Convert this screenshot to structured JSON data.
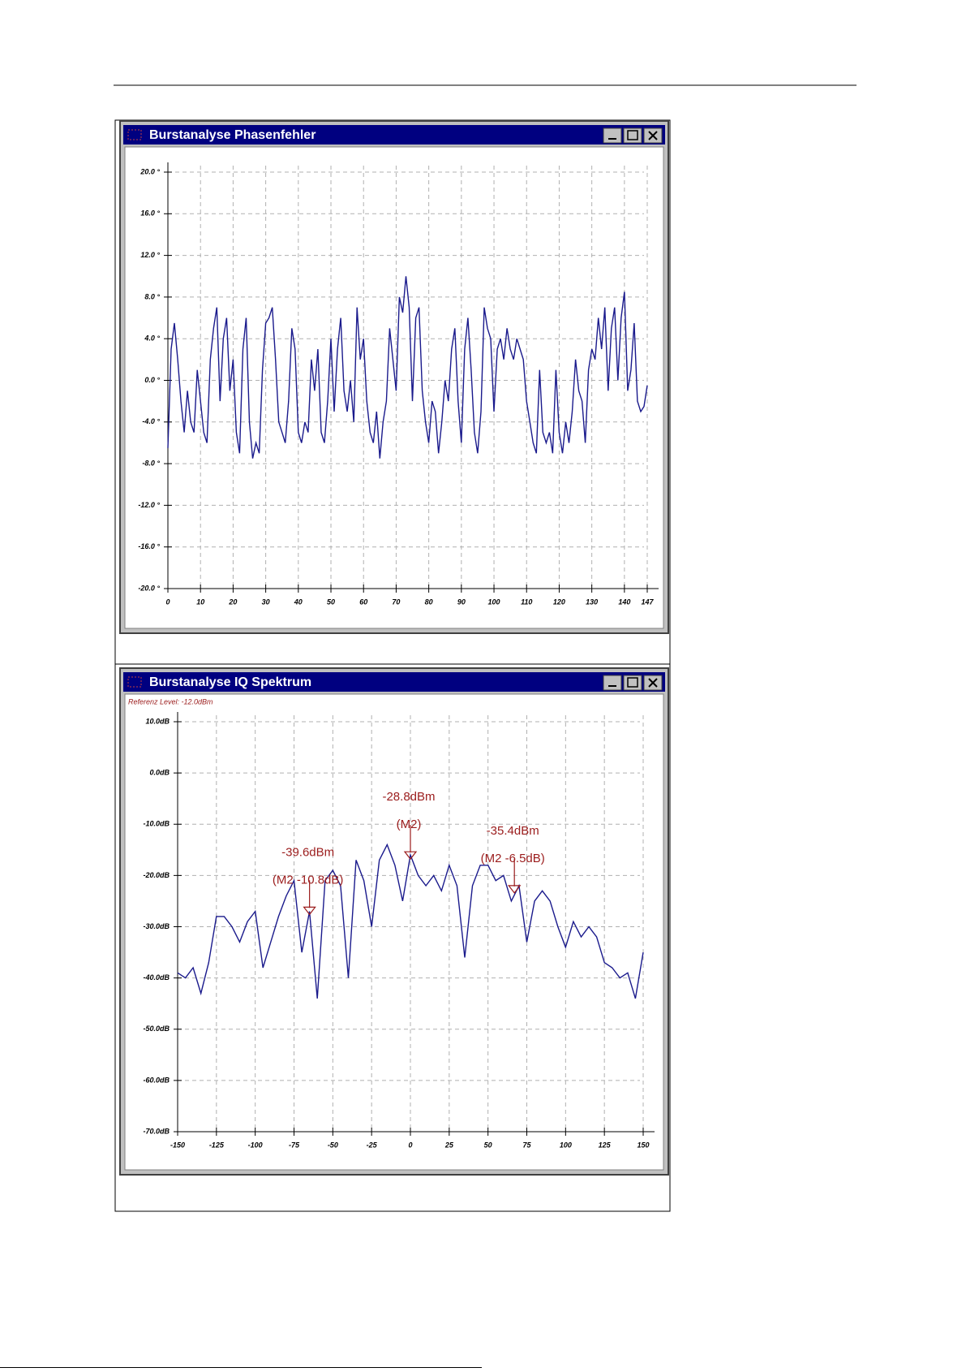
{
  "charts": [
    {
      "type": "line",
      "title": "Burstanalyse Phasenfehler",
      "x": [
        0,
        1,
        2,
        3,
        4,
        5,
        6,
        7,
        8,
        9,
        10,
        11,
        12,
        13,
        14,
        15,
        16,
        17,
        18,
        19,
        20,
        21,
        22,
        23,
        24,
        25,
        26,
        27,
        28,
        29,
        30,
        31,
        32,
        33,
        34,
        35,
        36,
        37,
        38,
        39,
        40,
        41,
        42,
        43,
        44,
        45,
        46,
        47,
        48,
        49,
        50,
        51,
        52,
        53,
        54,
        55,
        56,
        57,
        58,
        59,
        60,
        61,
        62,
        63,
        64,
        65,
        66,
        67,
        68,
        69,
        70,
        71,
        72,
        73,
        74,
        75,
        76,
        77,
        78,
        79,
        80,
        81,
        82,
        83,
        84,
        85,
        86,
        87,
        88,
        89,
        90,
        91,
        92,
        93,
        94,
        95,
        96,
        97,
        98,
        99,
        100,
        101,
        102,
        103,
        104,
        105,
        106,
        107,
        108,
        109,
        110,
        111,
        112,
        113,
        114,
        115,
        116,
        117,
        118,
        119,
        120,
        121,
        122,
        123,
        124,
        125,
        126,
        127,
        128,
        129,
        130,
        131,
        132,
        133,
        134,
        135,
        136,
        137,
        138,
        139,
        140,
        141,
        142,
        143,
        144,
        145,
        146,
        147
      ],
      "series": [
        {
          "color": "#1a1a8c",
          "values": [
            -6.5,
            3,
            5.5,
            2,
            -2,
            -5,
            -1,
            -4,
            -5,
            1,
            -2,
            -5,
            -6,
            2,
            5,
            7,
            -2,
            4,
            6,
            -1,
            2,
            -5,
            -7,
            3,
            6,
            -4,
            -7.5,
            -6,
            -7,
            1,
            5.5,
            6,
            7,
            2,
            -4,
            -5,
            -6,
            -2,
            5,
            3,
            -5,
            -6,
            -4,
            -5,
            2,
            -1,
            3,
            -5,
            -6,
            -2,
            4,
            -3,
            3,
            6,
            -1,
            -3,
            0,
            -4,
            7,
            2,
            4,
            -2,
            -5,
            -6,
            -3,
            -7.5,
            -4,
            -2,
            5,
            2,
            -1,
            8,
            6.5,
            10,
            7,
            -2,
            6,
            7,
            -1,
            -4,
            -6,
            -2,
            -3,
            -7,
            -4,
            0,
            -2,
            3,
            5,
            -2,
            -6,
            3,
            6,
            1,
            -5,
            -7,
            -3,
            7,
            5,
            4,
            -3,
            3,
            4,
            2,
            5,
            3,
            2,
            4,
            3,
            2,
            -2,
            -4,
            -6,
            -7,
            1,
            -5,
            -6,
            -5,
            -7,
            1,
            -5,
            -7,
            -4,
            -6,
            -3,
            2,
            -1,
            -2,
            -6,
            1,
            3,
            2,
            6,
            3,
            7,
            -1,
            5,
            7,
            0,
            6,
            8.5,
            -1,
            1,
            5.5,
            -2,
            -3,
            -2.5,
            -0.5
          ]
        }
      ],
      "xlim": [
        0,
        147
      ],
      "xticks": [
        0,
        10,
        20,
        30,
        40,
        50,
        60,
        70,
        80,
        90,
        100,
        110,
        120,
        130,
        140,
        147
      ],
      "ylim": [
        -20,
        20
      ],
      "yticks": [
        {
          "value": 20,
          "label": "20.0 °"
        },
        {
          "value": 16,
          "label": "16.0 °"
        },
        {
          "value": 12,
          "label": "12.0 °"
        },
        {
          "value": 8,
          "label": "8.0 °"
        },
        {
          "value": 4,
          "label": "4.0 °"
        },
        {
          "value": 0,
          "label": "0.0 °"
        },
        {
          "value": -4,
          "label": "-4.0 °"
        },
        {
          "value": -8,
          "label": "-8.0 °"
        },
        {
          "value": -12,
          "label": "-12.0 °"
        },
        {
          "value": -16,
          "label": "-16.0 °"
        },
        {
          "value": -20,
          "label": "-20.0 °"
        }
      ],
      "grid": true
    },
    {
      "type": "line",
      "title": "Burstanalyse IQ Spektrum",
      "subtitle": "Referenz Level: -12.0dBm",
      "x": [
        -150,
        -145,
        -140,
        -135,
        -130,
        -125,
        -120,
        -115,
        -110,
        -105,
        -100,
        -95,
        -90,
        -85,
        -80,
        -75,
        -70,
        -65,
        -60,
        -55,
        -50,
        -45,
        -40,
        -35,
        -30,
        -25,
        -20,
        -15,
        -10,
        -5,
        0,
        5,
        10,
        15,
        20,
        25,
        30,
        35,
        40,
        45,
        50,
        55,
        60,
        65,
        70,
        75,
        80,
        85,
        90,
        95,
        100,
        105,
        110,
        115,
        120,
        125,
        130,
        135,
        140,
        145,
        150
      ],
      "series": [
        {
          "color": "#1a1a8c",
          "values": [
            -39,
            -40,
            -38,
            -43,
            -37,
            -28,
            -28,
            -30,
            -33,
            -29,
            -27,
            -38,
            -33,
            -28,
            -24,
            -21,
            -35,
            -27,
            -44,
            -21,
            -19,
            -22,
            -40,
            -17,
            -21,
            -30,
            -17,
            -14,
            -18,
            -25,
            -16,
            -20,
            -22,
            -20,
            -23,
            -18,
            -22,
            -36,
            -22,
            -18,
            -18,
            -21,
            -20,
            -25,
            -22,
            -33,
            -25,
            -23,
            -25,
            -30,
            -34,
            -29,
            -32,
            -30,
            -32,
            -37,
            -38,
            -40,
            -39,
            -44,
            -35
          ]
        }
      ],
      "xlim": [
        -150,
        150
      ],
      "xticks": [
        -150,
        -125,
        -100,
        -75,
        -50,
        -25,
        0,
        25,
        50,
        75,
        100,
        125,
        150
      ],
      "ylim": [
        -70,
        10
      ],
      "yticks": [
        {
          "value": 10,
          "label": "10.0dB"
        },
        {
          "value": 0,
          "label": "0.0dB"
        },
        {
          "value": -10,
          "label": "-10.0dB"
        },
        {
          "value": -20,
          "label": "-20.0dB"
        },
        {
          "value": -30,
          "label": "-30.0dB"
        },
        {
          "value": -40,
          "label": "-40.0dB"
        },
        {
          "value": -50,
          "label": "-50.0dB"
        },
        {
          "value": -60,
          "label": "-60.0dB"
        },
        {
          "value": -70,
          "label": "-70.0dB"
        }
      ],
      "grid": true,
      "annotations": [
        {
          "x": -65,
          "y": -27.6,
          "lines": [
            "-39.6dBm",
            "(M2 -10.8dB)"
          ]
        },
        {
          "x": 0,
          "y": -16.8,
          "lines": [
            "-28.8dBm",
            "(M2)"
          ]
        },
        {
          "x": 67,
          "y": -23.4,
          "lines": [
            "-35.4dBm",
            "(M2 -6.5dB)"
          ]
        }
      ]
    }
  ]
}
